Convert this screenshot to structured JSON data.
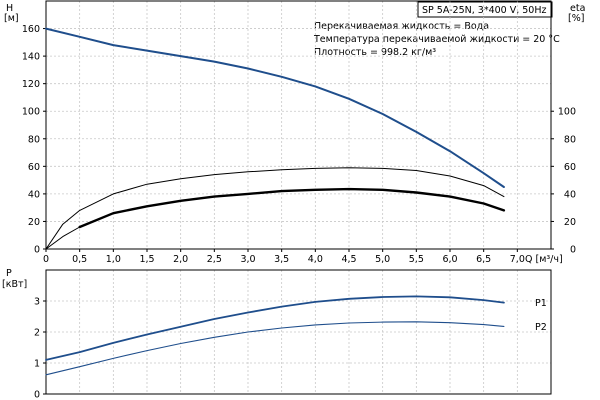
{
  "chart_data": [
    {
      "type": "line",
      "panel": "top",
      "pump_label": "SP 5A-25N, 3*400 V, 50Hz",
      "info_lines": [
        "Перекачиваемая жидкость = Вода",
        "Температура перекачиваемой жидкости = 20 °C",
        "Плотность = 998.2 кг/м³"
      ],
      "y_left_label": [
        "H",
        "[м]"
      ],
      "y_right_label": [
        "eta",
        "[%]"
      ],
      "x_label": "Q [м³/ч]",
      "xlim": [
        0,
        7.5
      ],
      "x_ticks": [
        "0",
        "0,5",
        "1,0",
        "1,5",
        "2,0",
        "2,5",
        "3,0",
        "3,5",
        "4,0",
        "4,5",
        "5,0",
        "5,5",
        "6,0",
        "6,5",
        "7,0"
      ],
      "ylim_left": [
        0,
        180
      ],
      "y_left_ticks": [
        "0",
        "20",
        "40",
        "60",
        "80",
        "100",
        "120",
        "140",
        "160"
      ],
      "ylim_right": [
        0,
        180
      ],
      "y_right_ticks": [
        "0",
        "20",
        "40",
        "60",
        "80",
        "100"
      ],
      "grid": true,
      "series": [
        {
          "key": "H",
          "axis": "left",
          "color": "#1f4e8c",
          "x": [
            0,
            0.5,
            1.0,
            1.5,
            2.0,
            2.5,
            3.0,
            3.5,
            4.0,
            4.5,
            5.0,
            5.5,
            6.0,
            6.5,
            6.8
          ],
          "y": [
            160,
            154,
            148,
            144,
            140,
            136,
            131,
            125,
            118,
            109,
            98,
            85,
            71,
            55,
            45
          ]
        },
        {
          "key": "eta",
          "axis": "right",
          "color": "#000000",
          "x": [
            0,
            0.25,
            0.5,
            1.0,
            1.5,
            2.0,
            2.5,
            3.0,
            3.5,
            4.0,
            4.5,
            5.0,
            5.5,
            6.0,
            6.5,
            6.8
          ],
          "y": [
            0,
            18,
            28,
            40,
            47,
            51,
            54,
            56,
            57.5,
            58.5,
            59,
            58.5,
            57,
            53,
            46,
            38
          ]
        },
        {
          "key": "eta_thick",
          "axis": "right",
          "color": "#000000",
          "x": [
            0.5,
            1.0,
            1.5,
            2.0,
            2.5,
            3.0,
            3.5,
            4.0,
            4.5,
            5.0,
            5.5,
            6.0,
            6.5,
            6.8
          ],
          "y": [
            16,
            26,
            31,
            35,
            38,
            40,
            42,
            43,
            43.5,
            43,
            41,
            38,
            33,
            28
          ]
        },
        {
          "key": "eta_thin_start",
          "axis": "right",
          "color": "#000000",
          "x": [
            0,
            0.25,
            0.5
          ],
          "y": [
            0,
            9,
            16
          ]
        }
      ]
    },
    {
      "type": "line",
      "panel": "bottom",
      "y_label": [
        "P",
        "[кВт]"
      ],
      "xlim": [
        0,
        7.5
      ],
      "ylim": [
        0,
        4
      ],
      "y_ticks": [
        "0",
        "1",
        "2",
        "3"
      ],
      "grid": true,
      "series": [
        {
          "name": "P1",
          "color": "#1f4e8c",
          "x": [
            0,
            0.5,
            1.0,
            1.5,
            2.0,
            2.5,
            3.0,
            3.5,
            4.0,
            4.5,
            5.0,
            5.5,
            6.0,
            6.5,
            6.8
          ],
          "y": [
            1.1,
            1.35,
            1.65,
            1.92,
            2.17,
            2.42,
            2.63,
            2.82,
            2.97,
            3.07,
            3.13,
            3.15,
            3.12,
            3.03,
            2.95
          ]
        },
        {
          "name": "P2",
          "color": "#1f4e8c",
          "x": [
            0,
            0.5,
            1.0,
            1.5,
            2.0,
            2.5,
            3.0,
            3.5,
            4.0,
            4.5,
            5.0,
            5.5,
            6.0,
            6.5,
            6.8
          ],
          "y": [
            0.62,
            0.88,
            1.15,
            1.4,
            1.63,
            1.83,
            2.0,
            2.13,
            2.23,
            2.29,
            2.32,
            2.33,
            2.3,
            2.24,
            2.18
          ]
        }
      ]
    }
  ]
}
